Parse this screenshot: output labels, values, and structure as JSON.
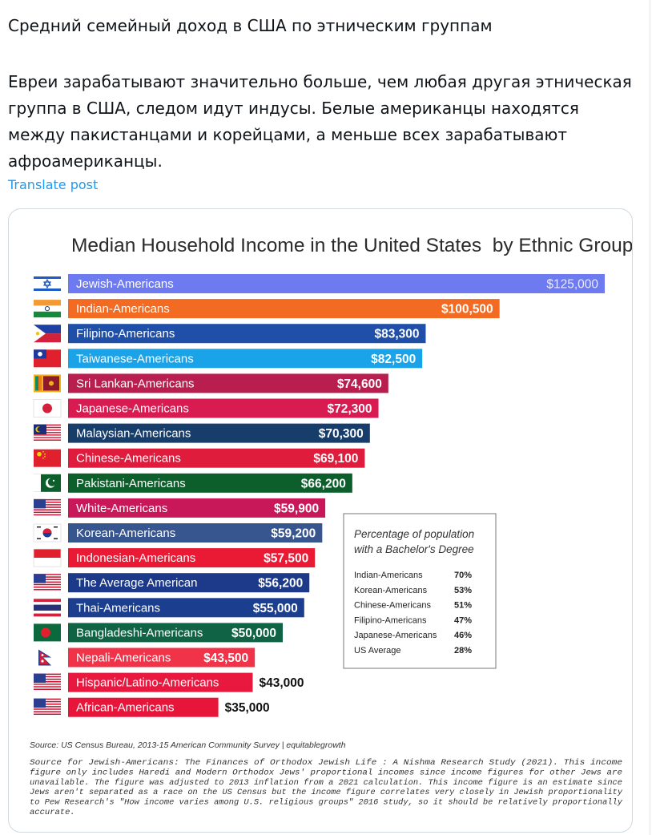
{
  "post": {
    "heading": "Средний семейный доход в США по этническим группам",
    "body": "Евреи зарабатывают значительно больше, чем любая другая этническая группа в США, следом идут индусы. Белые американцы находятся между пакистанцами и корейцами, а меньше всех зарабатывают афроамериканцы.",
    "translate_label": "Translate post"
  },
  "chart_data": {
    "type": "bar",
    "orientation": "horizontal",
    "title": "Median Household Income in the United States  by Ethnic Group",
    "categories": [
      "Jewish-Americans",
      "Indian-Americans",
      "Filipino-Americans",
      "Taiwanese-Americans",
      "Sri Lankan-Americans",
      "Japanese-Americans",
      "Malaysian-Americans",
      "Chinese-Americans",
      "Pakistani-Americans",
      "White-Americans",
      "Korean-Americans",
      "Indonesian-Americans",
      "The Average American",
      "Thai-Americans",
      "Bangladeshi-Americans",
      "Nepali-Americans",
      "Hispanic/Latino-Americans",
      "African-Americans"
    ],
    "values": [
      125000,
      100500,
      83300,
      82500,
      74600,
      72300,
      70300,
      69100,
      66200,
      59900,
      59200,
      57500,
      56200,
      55000,
      50000,
      43500,
      43000,
      35000
    ],
    "value_labels": [
      "$125,000",
      "$100,500",
      "$83,300",
      "$82,500",
      "$74,600",
      "$72,300",
      "$70,300",
      "$69,100",
      "$66,200",
      "$59,900",
      "$59,200",
      "$57,500",
      "$56,200",
      "$55,000",
      "$50,000",
      "$43,500",
      "$43,000",
      "$35,000"
    ],
    "bar_colors": [
      "#6e7bf0",
      "#f36a22",
      "#1f4fa8",
      "#1aa3e8",
      "#b81f4e",
      "#d81b50",
      "#173d6b",
      "#df1c3c",
      "#0c5f2b",
      "#c9185a",
      "#37558f",
      "#ea1a35",
      "#1d3a8a",
      "#1c3e8f",
      "#116345",
      "#f03349",
      "#e8183f",
      "#e8153a"
    ],
    "flags": [
      "israel-flag",
      "india-flag",
      "philippines-flag",
      "taiwan-flag",
      "sri-lanka-flag",
      "japan-flag",
      "malaysia-flag",
      "china-flag",
      "pakistan-flag",
      "usa-flag",
      "south-korea-flag",
      "indonesia-flag",
      "usa-flag",
      "thailand-flag",
      "bangladesh-flag",
      "nepal-flag",
      "usa-flag",
      "usa-flag"
    ],
    "inset": {
      "title_lines": [
        "Percentage of population",
        "with a Bachelor's Degree"
      ],
      "rows": [
        {
          "label": "Indian-Americans",
          "value": "70%"
        },
        {
          "label": "Korean-Americans",
          "value": "53%"
        },
        {
          "label": "Chinese-Americans",
          "value": "51%"
        },
        {
          "label": "Filipino-Americans",
          "value": "47%"
        },
        {
          "label": "Japanese-Americans",
          "value": "46%"
        },
        {
          "label": "US Average",
          "value": "28%"
        }
      ]
    },
    "source": "Source: US Census Bureau, 2013-15 American Community Survey | equitablegrowth",
    "note_lines": [
      "Source for Jewish-Americans: The Finances of Orthodox Jewish Life : A Nishma Research Study (2021). This income",
      "figure only includes Haredi and Modern Orthodox Jews' proportional incomes since income figures for other Jews are",
      "unavailable. The figure was adjusted to 2013 inflation from a 2021 calculation. This income figure is an estimate since",
      "Jews aren't separated as a race on the US Census but the income figure correlates very closely in Jewish proportionality",
      "to Pew Research's \"How income varies among U.S. religious groups\" 2016 study, so it should be relatively proportionally",
      "accurate."
    ]
  }
}
